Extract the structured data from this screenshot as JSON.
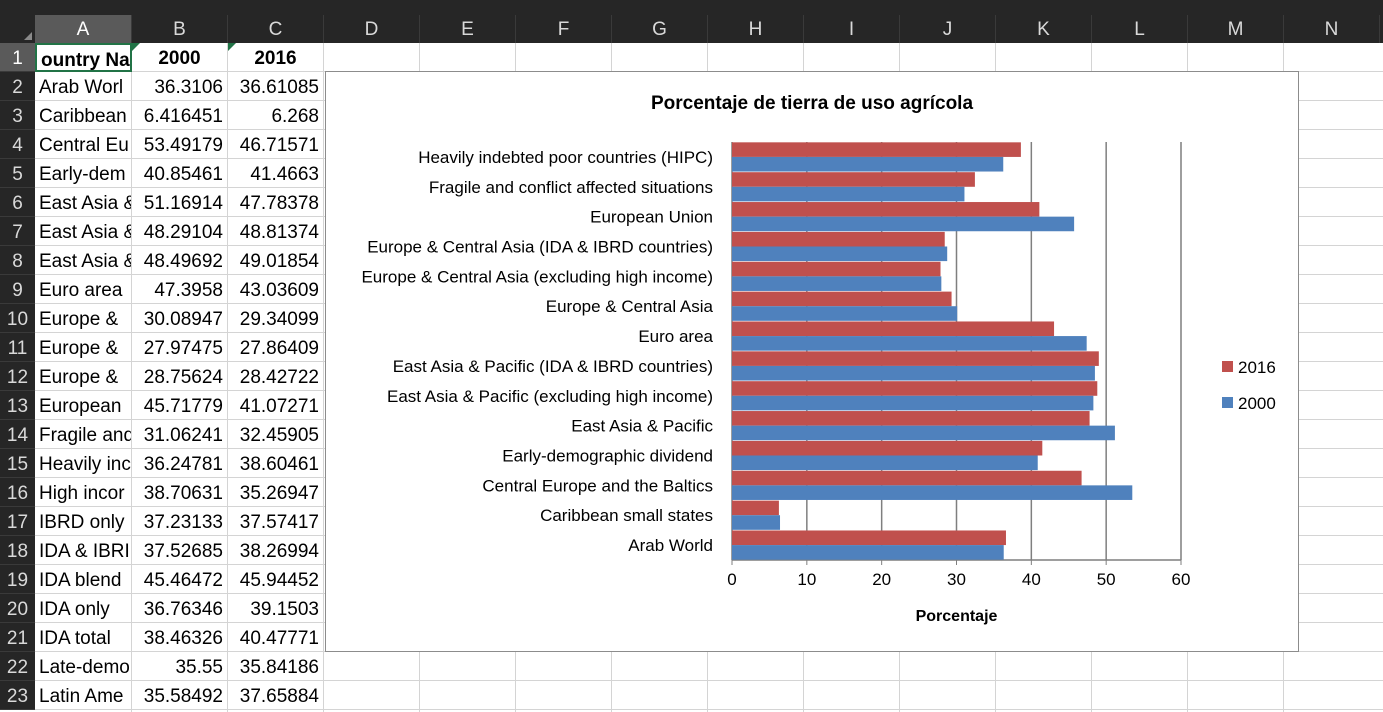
{
  "columns": [
    "A",
    "B",
    "C",
    "D",
    "E",
    "F",
    "G",
    "H",
    "I",
    "J",
    "K",
    "L",
    "M",
    "N"
  ],
  "rows": [
    "1",
    "2",
    "3",
    "4",
    "5",
    "6",
    "7",
    "8",
    "9",
    "10",
    "11",
    "12",
    "13",
    "14",
    "15",
    "16",
    "17",
    "18",
    "19",
    "20",
    "21",
    "22",
    "23"
  ],
  "header_row": {
    "a": "ountry Nan",
    "b": "2000",
    "c": "2016"
  },
  "data_rows": [
    {
      "a": "Arab Worl",
      "b": "36.3106",
      "c": "36.61085"
    },
    {
      "a": "Caribbean",
      "b": "6.416451",
      "c": "6.268"
    },
    {
      "a": "Central Eu",
      "b": "53.49179",
      "c": "46.71571"
    },
    {
      "a": "Early-dem",
      "b": "40.85461",
      "c": "41.4663"
    },
    {
      "a": "East Asia &",
      "b": "51.16914",
      "c": "47.78378"
    },
    {
      "a": "East Asia &",
      "b": "48.29104",
      "c": "48.81374"
    },
    {
      "a": "East Asia &",
      "b": "48.49692",
      "c": "49.01854"
    },
    {
      "a": "Euro area",
      "b": "47.3958",
      "c": "43.03609"
    },
    {
      "a": "Europe &",
      "b": "30.08947",
      "c": "29.34099"
    },
    {
      "a": "Europe &",
      "b": "27.97475",
      "c": "27.86409"
    },
    {
      "a": "Europe &",
      "b": "28.75624",
      "c": "28.42722"
    },
    {
      "a": "European",
      "b": "45.71779",
      "c": "41.07271"
    },
    {
      "a": "Fragile and",
      "b": "31.06241",
      "c": "32.45905"
    },
    {
      "a": "Heavily inc",
      "b": "36.24781",
      "c": "38.60461"
    },
    {
      "a": "High incor",
      "b": "38.70631",
      "c": "35.26947"
    },
    {
      "a": "IBRD only",
      "b": "37.23133",
      "c": "37.57417"
    },
    {
      "a": "IDA & IBRI",
      "b": "37.52685",
      "c": "38.26994"
    },
    {
      "a": "IDA blend",
      "b": "45.46472",
      "c": "45.94452"
    },
    {
      "a": "IDA only",
      "b": "36.76346",
      "c": "39.1503"
    },
    {
      "a": "IDA total",
      "b": "38.46326",
      "c": "40.47771"
    },
    {
      "a": "Late-demo",
      "b": "35.55",
      "c": "35.84186"
    },
    {
      "a": "Latin Ame",
      "b": "35.58492",
      "c": "37.65884"
    }
  ],
  "colors": {
    "series_2016": "#C0504D",
    "series_2000": "#4F81BD",
    "excel_green": "#217346"
  },
  "chart_data": {
    "type": "bar",
    "orientation": "horizontal",
    "title": "Porcentaje de tierra de uso agrícola",
    "xlabel": "Porcentaje",
    "ylabel": "",
    "xlim": [
      0,
      60
    ],
    "ticks": [
      "0",
      "10",
      "20",
      "30",
      "40",
      "50",
      "60"
    ],
    "tick_values": [
      0,
      10,
      20,
      30,
      40,
      50,
      60
    ],
    "grid": "vertical major gridlines",
    "legend_position": "right",
    "legend": [
      {
        "name": "2016",
        "color": "#C0504D"
      },
      {
        "name": "2000",
        "color": "#4F81BD"
      }
    ],
    "categories": [
      "Arab World",
      "Caribbean small states",
      "Central Europe and the Baltics",
      "Early-demographic dividend",
      "East Asia & Pacific",
      "East Asia & Pacific (excluding high income)",
      "East Asia & Pacific (IDA & IBRD countries)",
      "Euro area",
      "Europe & Central Asia",
      "Europe & Central Asia (excluding high income)",
      "Europe & Central Asia (IDA & IBRD countries)",
      "European Union",
      "Fragile and conflict affected situations",
      "Heavily indebted poor countries (HIPC)"
    ],
    "series": [
      {
        "name": "2000",
        "values": [
          36.3106,
          6.416451,
          53.49179,
          40.85461,
          51.16914,
          48.29104,
          48.49692,
          47.3958,
          30.08947,
          27.97475,
          28.75624,
          45.71779,
          31.06241,
          36.24781
        ]
      },
      {
        "name": "2016",
        "values": [
          36.61085,
          6.268,
          46.71571,
          41.4663,
          47.78378,
          48.81374,
          49.01854,
          43.03609,
          29.34099,
          27.86409,
          28.42722,
          41.07271,
          32.45905,
          38.60461
        ]
      }
    ]
  }
}
